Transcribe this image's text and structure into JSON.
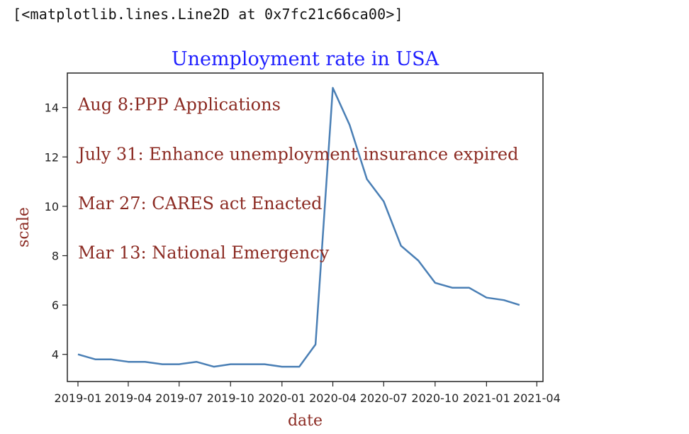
{
  "output_text": "[<matplotlib.lines.Line2D at 0x7fc21c66ca00>]",
  "colors": {
    "title": "#1f1fff",
    "annotation": "#8b2a22",
    "axis_label": "#8b2a22",
    "line": "#4a7fb5",
    "axes_frame": "#222222"
  },
  "chart_data": {
    "type": "line",
    "title": "Unemployment rate in USA",
    "xlabel": "date",
    "ylabel": "scale",
    "x": [
      "2019-01",
      "2019-02",
      "2019-03",
      "2019-04",
      "2019-05",
      "2019-06",
      "2019-07",
      "2019-08",
      "2019-09",
      "2019-10",
      "2019-11",
      "2019-12",
      "2020-01",
      "2020-02",
      "2020-03",
      "2020-04",
      "2020-05",
      "2020-06",
      "2020-07",
      "2020-08",
      "2020-09",
      "2020-10",
      "2020-11",
      "2020-12",
      "2021-01",
      "2021-02",
      "2021-03"
    ],
    "series": [
      {
        "values": [
          4.0,
          3.8,
          3.8,
          3.7,
          3.7,
          3.6,
          3.6,
          3.7,
          3.5,
          3.6,
          3.6,
          3.6,
          3.5,
          3.5,
          4.4,
          14.8,
          13.3,
          11.1,
          10.2,
          8.4,
          7.8,
          6.9,
          6.7,
          6.7,
          6.3,
          6.2,
          6.0
        ]
      }
    ],
    "xticks": [
      "2019-01",
      "2019-04",
      "2019-07",
      "2019-10",
      "2020-01",
      "2020-04",
      "2020-07",
      "2020-10",
      "2021-01",
      "2021-04"
    ],
    "yticks": [
      4,
      6,
      8,
      10,
      12,
      14
    ],
    "xlim": [
      "2018-12-13",
      "2021-04-12"
    ],
    "ylim": [
      2.9,
      15.4
    ],
    "grid": false,
    "annotations": [
      {
        "text": "Aug 8:PPP Applications",
        "x": "2019-01",
        "y": 14.0
      },
      {
        "text": "July 31: Enhance unemployment insurance expired",
        "x": "2019-01",
        "y": 12.0
      },
      {
        "text": "Mar 27: CARES act Enacted",
        "x": "2019-01",
        "y": 10.0
      },
      {
        "text": "Mar 13: National Emergency",
        "x": "2019-01",
        "y": 8.0
      }
    ]
  }
}
